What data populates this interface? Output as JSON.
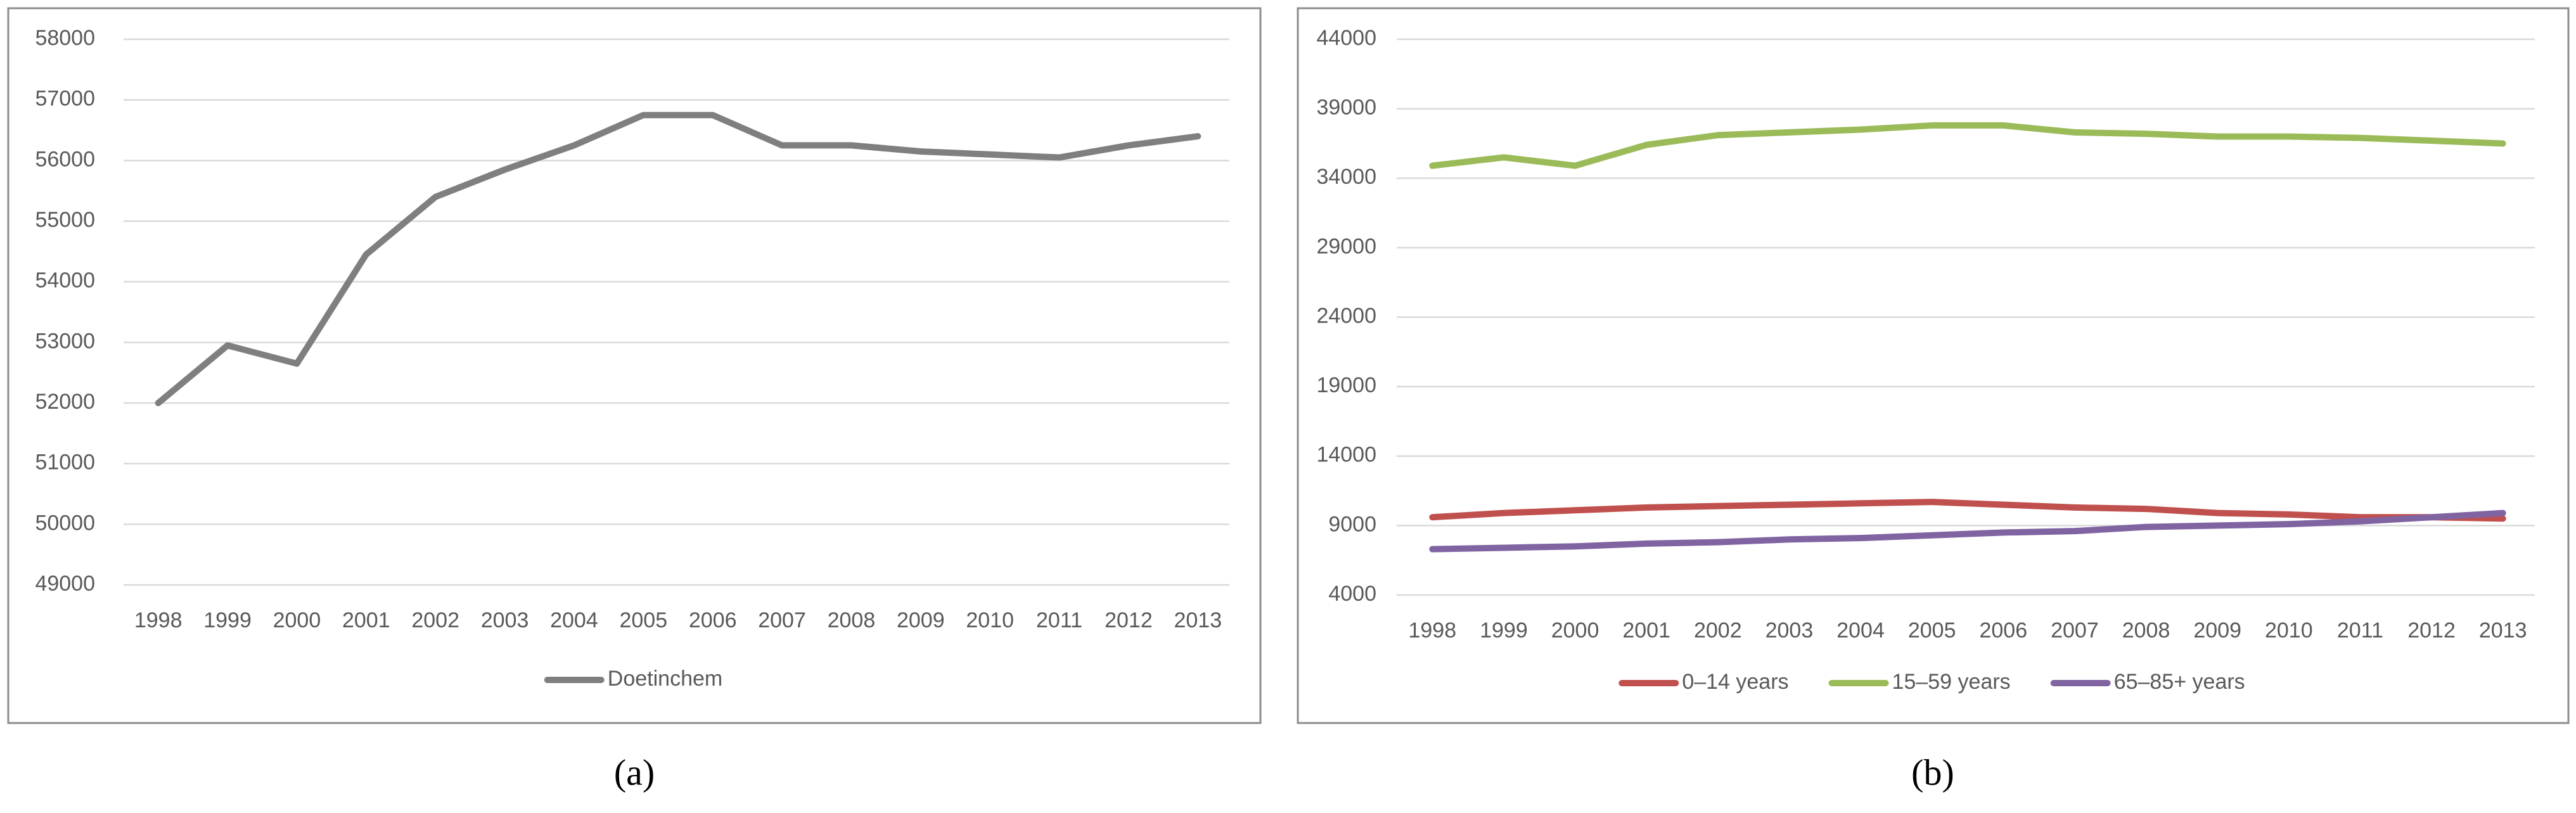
{
  "chart_data": [
    {
      "type": "line",
      "caption": "(a)",
      "categories": [
        "1998",
        "1999",
        "2000",
        "2001",
        "2002",
        "2003",
        "2004",
        "2005",
        "2006",
        "2007",
        "2008",
        "2009",
        "2010",
        "2011",
        "2012",
        "2013"
      ],
      "series": [
        {
          "name": "Doetinchem",
          "color": "#7f7f7f",
          "values": [
            52000,
            52950,
            52650,
            54450,
            55400,
            55850,
            56250,
            56750,
            56750,
            56250,
            56250,
            56150,
            56100,
            56050,
            56250,
            56400
          ]
        }
      ],
      "ylim": [
        49000,
        58000
      ],
      "yticks": [
        49000,
        50000,
        51000,
        52000,
        53000,
        54000,
        55000,
        56000,
        57000,
        58000
      ],
      "grid": true,
      "legend": "bottom"
    },
    {
      "type": "line",
      "caption": "(b)",
      "categories": [
        "1998",
        "1999",
        "2000",
        "2001",
        "2002",
        "2003",
        "2004",
        "2005",
        "2006",
        "2007",
        "2008",
        "2009",
        "2010",
        "2011",
        "2012",
        "2013"
      ],
      "series": [
        {
          "name": "0–14 years",
          "color": "#c0504d",
          "values": [
            9600,
            9900,
            10100,
            10300,
            10400,
            10500,
            10600,
            10700,
            10500,
            10300,
            10200,
            9900,
            9800,
            9600,
            9600,
            9500
          ]
        },
        {
          "name": "15–59 years",
          "color": "#9bbb59",
          "values": [
            34900,
            35500,
            34900,
            36400,
            37100,
            37300,
            37500,
            37800,
            37800,
            37300,
            37200,
            37000,
            37000,
            36900,
            36700,
            36500
          ]
        },
        {
          "name": "65–85+ years",
          "color": "#8064a2",
          "values": [
            7300,
            7400,
            7500,
            7700,
            7800,
            8000,
            8100,
            8300,
            8500,
            8600,
            8900,
            9000,
            9100,
            9300,
            9600,
            9900
          ]
        }
      ],
      "ylim": [
        4000,
        44000
      ],
      "yticks": [
        4000,
        9000,
        14000,
        19000,
        24000,
        29000,
        34000,
        39000,
        44000
      ],
      "grid": true,
      "legend": "bottom"
    }
  ]
}
